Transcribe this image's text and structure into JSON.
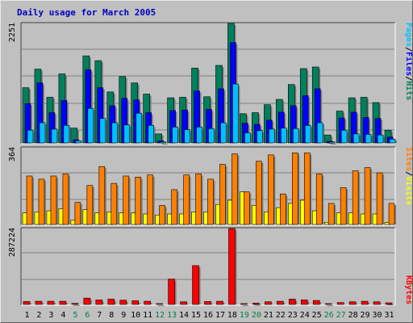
{
  "title": "Daily usage for March 2005",
  "colors": {
    "hits": "#00805c",
    "files": "#0000ff",
    "pages": "#00c0ff",
    "visits": "#ffff00",
    "sites": "#ff8000",
    "kbytes": "#ff0000",
    "weekend_day_label": "#008040",
    "weekday_label": "#000000"
  },
  "chart_data": [
    {
      "type": "bar",
      "name": "hits-files-pages",
      "ymax_label": "2251",
      "ylim": [
        0,
        2251
      ],
      "legend": [
        {
          "label": "Hits",
          "color": "#00805c"
        },
        {
          "label": "/",
          "color": "#000000"
        },
        {
          "label": "Files",
          "color": "#0000ff"
        },
        {
          "label": "/",
          "color": "#000000"
        },
        {
          "label": "Pages",
          "color": "#00c0ff"
        }
      ],
      "x": [
        "1",
        "2",
        "3",
        "4",
        "5",
        "6",
        "7",
        "8",
        "9",
        "10",
        "11",
        "12",
        "13",
        "14",
        "15",
        "16",
        "17",
        "18",
        "19",
        "20",
        "21",
        "22",
        "23",
        "24",
        "25",
        "26",
        "27",
        "28",
        "29",
        "30",
        "31"
      ],
      "series": [
        {
          "name": "Hits",
          "values": [
            1040,
            1390,
            860,
            1300,
            280,
            1640,
            1550,
            960,
            1250,
            1130,
            920,
            170,
            850,
            860,
            1410,
            870,
            1460,
            2250,
            550,
            570,
            720,
            820,
            1100,
            1400,
            1430,
            150,
            600,
            850,
            860,
            760,
            240
          ]
        },
        {
          "name": "Files",
          "values": [
            740,
            1130,
            570,
            800,
            60,
            1380,
            1040,
            700,
            840,
            810,
            570,
            40,
            610,
            620,
            980,
            630,
            1020,
            1890,
            370,
            350,
            430,
            580,
            700,
            890,
            1020,
            30,
            470,
            580,
            480,
            460,
            110
          ]
        },
        {
          "name": "Pages",
          "values": [
            240,
            380,
            260,
            330,
            40,
            650,
            460,
            380,
            340,
            560,
            330,
            20,
            300,
            250,
            300,
            270,
            380,
            1110,
            190,
            230,
            260,
            280,
            270,
            330,
            380,
            20,
            240,
            170,
            160,
            150,
            70
          ]
        }
      ]
    },
    {
      "type": "bar",
      "name": "visits-sites",
      "ymax_label": "364",
      "ylim": [
        0,
        364
      ],
      "legend": [
        {
          "label": "Visits",
          "color": "#ffff00"
        },
        {
          "label": "/",
          "color": "#000000"
        },
        {
          "label": "Sites",
          "color": "#ff8000"
        }
      ],
      "x": [
        "1",
        "2",
        "3",
        "4",
        "5",
        "6",
        "7",
        "8",
        "9",
        "10",
        "11",
        "12",
        "13",
        "14",
        "15",
        "16",
        "17",
        "18",
        "19",
        "20",
        "21",
        "22",
        "23",
        "24",
        "25",
        "26",
        "27",
        "28",
        "29",
        "30",
        "31"
      ],
      "series": [
        {
          "name": "Visits",
          "values": [
            55,
            60,
            65,
            75,
            20,
            70,
            55,
            60,
            55,
            55,
            50,
            45,
            50,
            50,
            60,
            60,
            95,
            115,
            155,
            90,
            60,
            80,
            100,
            115,
            65,
            10,
            55,
            55,
            50,
            50,
            10
          ]
        },
        {
          "name": "Sites",
          "values": [
            230,
            215,
            230,
            240,
            105,
            185,
            275,
            195,
            230,
            225,
            235,
            90,
            165,
            235,
            240,
            215,
            285,
            335,
            155,
            300,
            330,
            145,
            340,
            340,
            240,
            100,
            175,
            255,
            270,
            245,
            100
          ]
        }
      ]
    },
    {
      "type": "bar",
      "name": "kbytes",
      "ymax_label": "287224",
      "ylim": [
        0,
        287224
      ],
      "legend": [
        {
          "label": "KBytes",
          "color": "#ff0000"
        }
      ],
      "x": [
        "1",
        "2",
        "3",
        "4",
        "5",
        "6",
        "7",
        "8",
        "9",
        "10",
        "11",
        "12",
        "13",
        "14",
        "15",
        "16",
        "17",
        "18",
        "19",
        "20",
        "21",
        "22",
        "23",
        "24",
        "25",
        "26",
        "27",
        "28",
        "29",
        "30",
        "31"
      ],
      "series": [
        {
          "name": "KBytes",
          "values": [
            11000,
            12000,
            12000,
            12000,
            4000,
            24000,
            17000,
            20000,
            16000,
            14000,
            12000,
            2000,
            96000,
            10000,
            147000,
            11000,
            12000,
            287000,
            3000,
            5000,
            10000,
            12000,
            20000,
            17000,
            15000,
            2000,
            7000,
            10000,
            12000,
            10000,
            6000
          ]
        }
      ]
    }
  ],
  "day_labels": [
    {
      "text": "1",
      "weekend": false
    },
    {
      "text": "2",
      "weekend": false
    },
    {
      "text": "3",
      "weekend": false
    },
    {
      "text": "4",
      "weekend": false
    },
    {
      "text": "5",
      "weekend": true
    },
    {
      "text": "6",
      "weekend": true
    },
    {
      "text": "7",
      "weekend": false
    },
    {
      "text": "8",
      "weekend": false
    },
    {
      "text": "9",
      "weekend": false
    },
    {
      "text": "10",
      "weekend": false
    },
    {
      "text": "11",
      "weekend": false
    },
    {
      "text": "12",
      "weekend": true
    },
    {
      "text": "13",
      "weekend": true
    },
    {
      "text": "14",
      "weekend": false
    },
    {
      "text": "15",
      "weekend": false
    },
    {
      "text": "16",
      "weekend": false
    },
    {
      "text": "17",
      "weekend": false
    },
    {
      "text": "18",
      "weekend": false
    },
    {
      "text": "19",
      "weekend": true
    },
    {
      "text": "20",
      "weekend": true
    },
    {
      "text": "21",
      "weekend": false
    },
    {
      "text": "22",
      "weekend": false
    },
    {
      "text": "23",
      "weekend": false
    },
    {
      "text": "24",
      "weekend": false
    },
    {
      "text": "25",
      "weekend": false
    },
    {
      "text": "26",
      "weekend": true
    },
    {
      "text": "27",
      "weekend": true
    },
    {
      "text": "28",
      "weekend": false
    },
    {
      "text": "29",
      "weekend": false
    },
    {
      "text": "30",
      "weekend": false
    },
    {
      "text": "31",
      "weekend": false
    }
  ]
}
